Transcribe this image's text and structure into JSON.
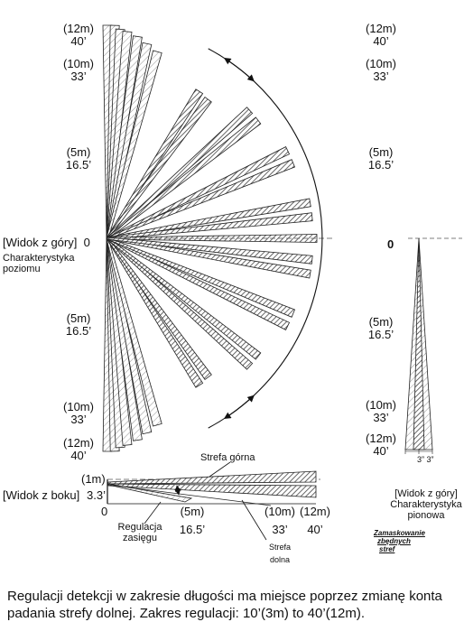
{
  "top_view": {
    "rows": [
      {
        "m": "(12m)",
        "ft": "40’"
      },
      {
        "m": "(10m)",
        "ft": "33’"
      },
      {
        "m": "(5m)",
        "ft": "16.5’"
      },
      {
        "m": "(5m)",
        "ft": "16.5’"
      },
      {
        "m": "(10m)",
        "ft": "33’"
      },
      {
        "m": "(12m)",
        "ft": "40’"
      }
    ],
    "zero_label": "0",
    "view_label": "[Widok z góry]",
    "caption_line1": "Charakterystyka",
    "caption_line2": "poziomu"
  },
  "side_view": {
    "view_label": "[Widok z boku]",
    "height_m": "(1m)",
    "height_ft": "3.3’",
    "x_labels": [
      {
        "m": "",
        "ft": "0"
      },
      {
        "m": "(5m)",
        "ft": "16.5’"
      },
      {
        "m": "(10m)",
        "ft": "33’"
      },
      {
        "m": "(12m)",
        "ft": "40’"
      }
    ],
    "upper_zone": "Strefa górna",
    "lower_zone_line1": "Strefa",
    "lower_zone_line2": "dolna",
    "range_adjust_line1": "Regulacja",
    "range_adjust_line2": "zasięgu"
  },
  "vertical_view": {
    "rows": [
      {
        "m": "(12m)",
        "ft": "40’"
      },
      {
        "m": "(10m)",
        "ft": "33’"
      },
      {
        "m": "(5m)",
        "ft": "16.5’"
      },
      {
        "m": "(5m)",
        "ft": "16.5’"
      },
      {
        "m": "(10m)",
        "ft": "33’"
      },
      {
        "m": "(12m)",
        "ft": "40’"
      }
    ],
    "zero_label": "0",
    "width_label": "3” 3”",
    "view_label": "[Widok z góry]",
    "caption_line1": "Charakterystyka",
    "caption_line2": "pionowa",
    "mask_line1": "Zamaskowanie",
    "mask_line2": "zbędnych",
    "mask_line3": "stref"
  },
  "caption": "Regulacji detekcji w zakresie długości ma miejsce poprzez zmianę konta padania strefy dolnej. Zakres regulacji: 10’(3m) to 40’(12m).",
  "colors": {
    "ink": "#111111",
    "hatch": "#444444",
    "fill": "#ffffff"
  }
}
